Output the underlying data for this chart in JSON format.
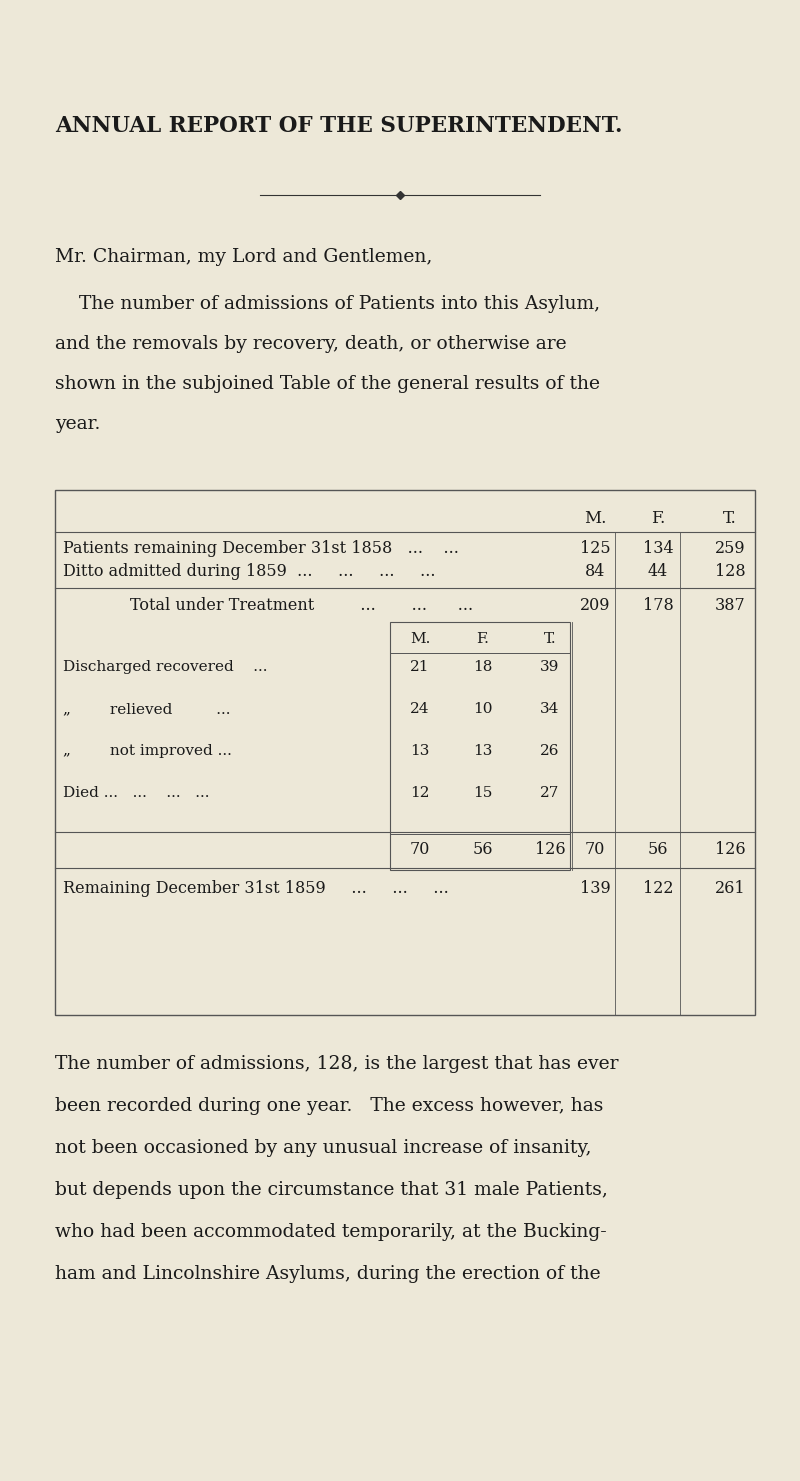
{
  "bg_color": "#EDE8D8",
  "text_color": "#1a1a1a",
  "title": "ANNUAL REPORT OF THE SUPERINTENDENT.",
  "salutation": "Mr. Chairman, my Lord and Gentlemen,",
  "para1": "The number of admissions of Patients into this Asylum,\nand the removals by recovery, death, or otherwise are\nshown in the subjoined Table of the general results of the\nyear.",
  "para2": "The number of admissions, 128, is the largest that has ever\nbeen recorded during one year.   The excess however, has\nnot been occasioned by any unusual increase of insanity,\nbut depends upon the circumstance that 31 male Patients,\nwho had been accommodated temporarily, at the Bucking-\nham and Lincolnshire Asylums, during the erection of the"
}
